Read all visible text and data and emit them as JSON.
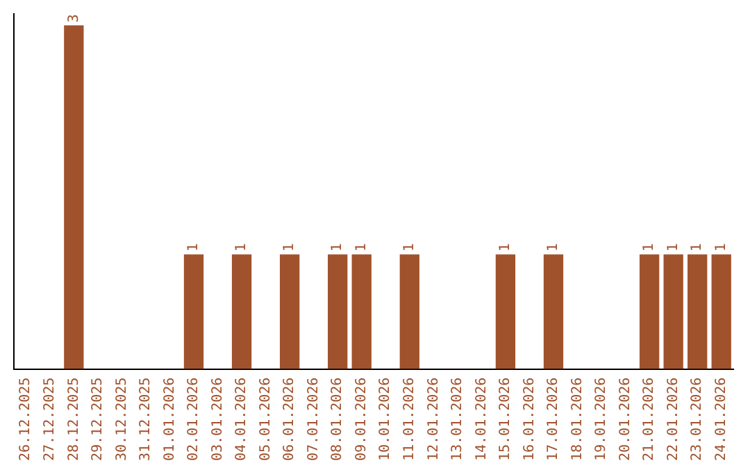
{
  "chart_data": {
    "type": "bar",
    "categories": [
      "26.12.2025",
      "27.12.2025",
      "28.12.2025",
      "29.12.2025",
      "30.12.2025",
      "31.12.2025",
      "01.01.2026",
      "02.01.2026",
      "03.01.2026",
      "04.01.2026",
      "05.01.2026",
      "06.01.2026",
      "07.01.2026",
      "08.01.2026",
      "09.01.2026",
      "10.01.2026",
      "11.01.2026",
      "12.01.2026",
      "13.01.2026",
      "14.01.2026",
      "15.01.2026",
      "16.01.2026",
      "17.01.2026",
      "18.01.2026",
      "19.01.2026",
      "20.01.2026",
      "21.01.2026",
      "22.01.2026",
      "23.01.2026",
      "24.01.2026"
    ],
    "values": [
      0,
      0,
      3,
      0,
      0,
      0,
      0,
      1,
      0,
      1,
      0,
      1,
      0,
      1,
      1,
      0,
      1,
      0,
      0,
      0,
      1,
      0,
      1,
      0,
      0,
      0,
      1,
      1,
      1,
      1
    ],
    "value_labels": [
      null,
      null,
      "3",
      null,
      null,
      null,
      null,
      "1",
      null,
      "1",
      null,
      "1",
      null,
      "1",
      "1",
      null,
      "1",
      null,
      null,
      null,
      "1",
      null,
      "1",
      null,
      null,
      null,
      "1",
      "1",
      "1",
      "1"
    ],
    "color": "#a0522d",
    "ylim": [
      0,
      3.1
    ],
    "tick_labels": "x",
    "grid": false,
    "legend": false
  }
}
